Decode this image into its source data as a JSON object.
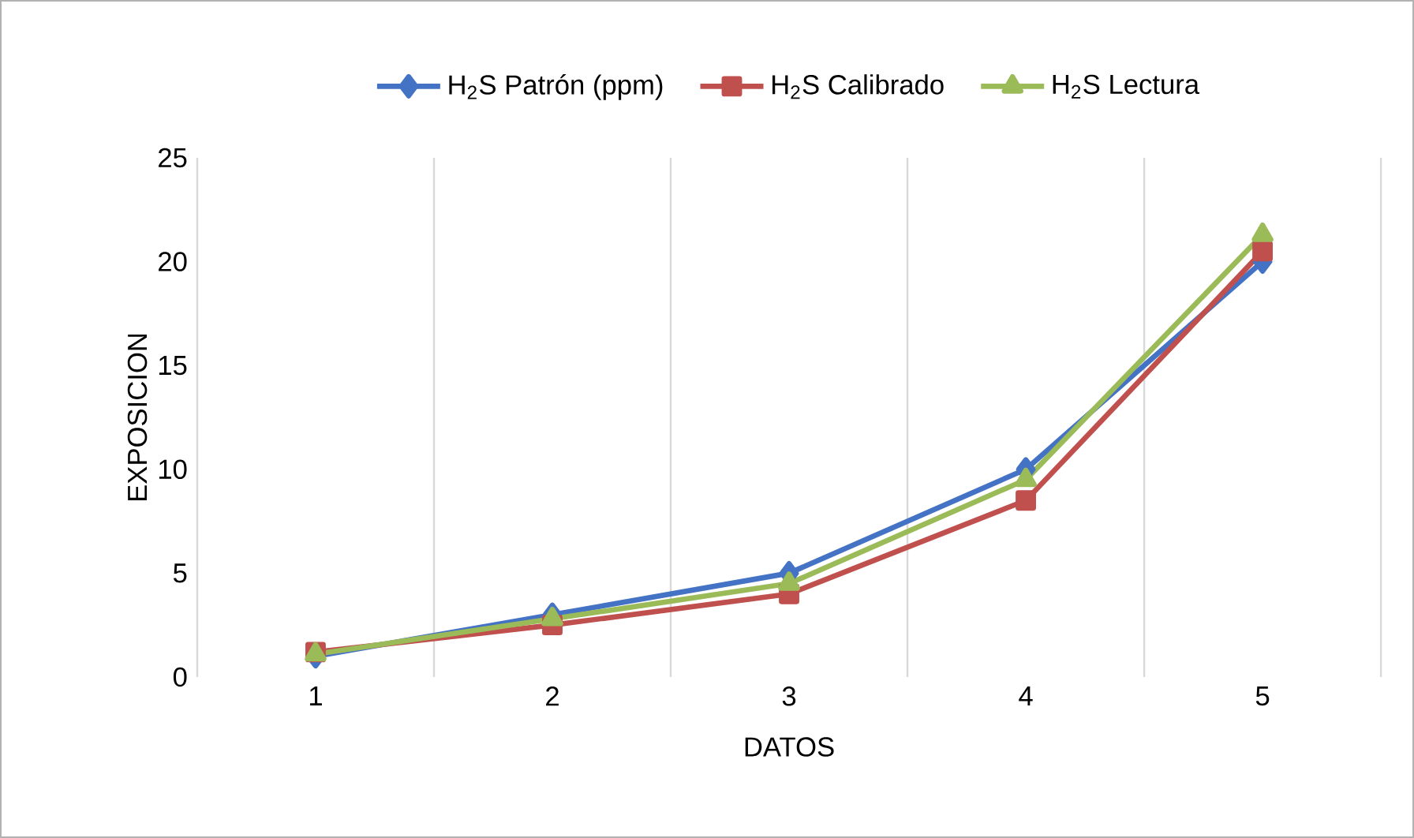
{
  "chart_data": {
    "type": "line",
    "xlabel": "DATOS",
    "ylabel": "EXPOSICION",
    "categories": [
      "1",
      "2",
      "3",
      "4",
      "5"
    ],
    "ylim": [
      0,
      25
    ],
    "yticks": [
      0,
      5,
      10,
      15,
      20,
      25
    ],
    "grid": "x",
    "legend": "top",
    "series": [
      {
        "name": "H$_{2}$S Patrón (ppm)",
        "color": "#4472c4",
        "marker": "diamond",
        "values": [
          1,
          3,
          5,
          10,
          20
        ]
      },
      {
        "name": "H$_{2}$S Calibrado",
        "color": "#c0504d",
        "marker": "square",
        "values": [
          1.2,
          2.5,
          4,
          8.5,
          20.5
        ]
      },
      {
        "name": "H$_{2}$S Lectura",
        "color": "#9bbb59",
        "marker": "triangle",
        "values": [
          1.1,
          2.8,
          4.5,
          9.5,
          21.3
        ]
      }
    ]
  }
}
